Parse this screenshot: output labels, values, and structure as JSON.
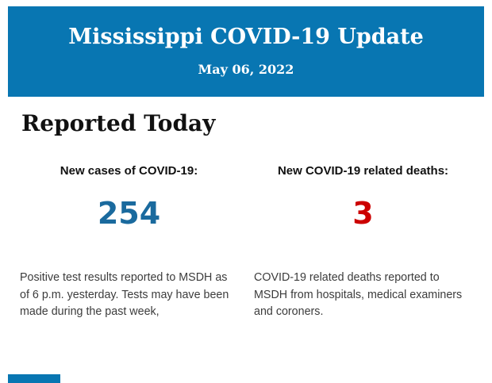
{
  "header": {
    "title": "Mississippi COVID-19 Update",
    "date": "May 06, 2022",
    "background_color": "#0876b2",
    "text_color": "#ffffff"
  },
  "section": {
    "heading": "Reported Today"
  },
  "stats": [
    {
      "label": "New cases of COVID-19:",
      "value": "254",
      "value_color": "#1a6a9e",
      "description": "Positive test results reported to MSDH as of 6 p.m. yesterday. Tests may have been made during the past week,"
    },
    {
      "label": "New COVID-19 related deaths:",
      "value": "3",
      "value_color": "#cc0000",
      "description": "COVID-19 related deaths reported to MSDH from hospitals, medical examiners and coroners."
    }
  ],
  "footer": {
    "partial_bar_color": "#0876b2"
  }
}
